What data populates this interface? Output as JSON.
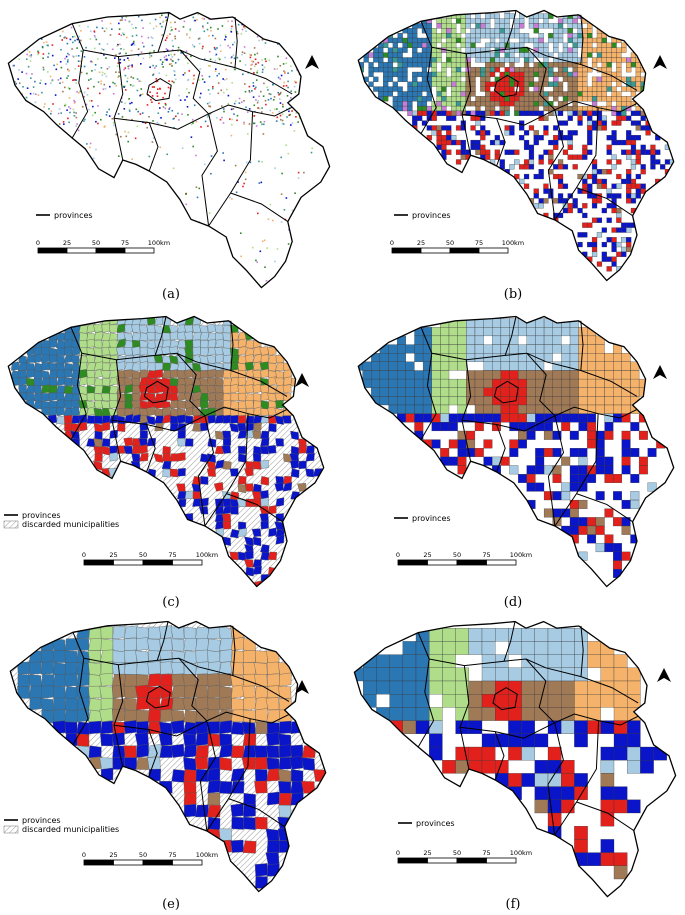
{
  "legend": {
    "provinces": "provinces",
    "discarded": "discarded municipalities"
  },
  "scale": {
    "ticks": [
      "0",
      "25",
      "50",
      "75",
      "100"
    ],
    "unit": "km"
  },
  "panels": [
    {
      "id": "a",
      "label": "(a)",
      "style": "points",
      "discarded_legend": false
    },
    {
      "id": "b",
      "label": "(b)",
      "style": "grid-small",
      "discarded_legend": false
    },
    {
      "id": "c",
      "label": "(c)",
      "style": "municipalities-fine",
      "discarded_legend": true
    },
    {
      "id": "d",
      "label": "(d)",
      "style": "grid-medium",
      "discarded_legend": false
    },
    {
      "id": "e",
      "label": "(e)",
      "style": "municipalities-merged",
      "discarded_legend": true
    },
    {
      "id": "f",
      "label": "(f)",
      "style": "grid-large",
      "discarded_legend": false
    }
  ],
  "colors": {
    "dark_blue_west": "#2b77b3",
    "light_blue": "#a6cbe3",
    "orange": "#f5b26b",
    "light_green": "#b0dd8a",
    "brown": "#a07a57",
    "red": "#e3211c",
    "royal_blue": "#0a14c8",
    "dark_green": "#2e8b22",
    "teal": "#3a9a93",
    "purple": "#c77dd6",
    "hatch": "#999999"
  }
}
